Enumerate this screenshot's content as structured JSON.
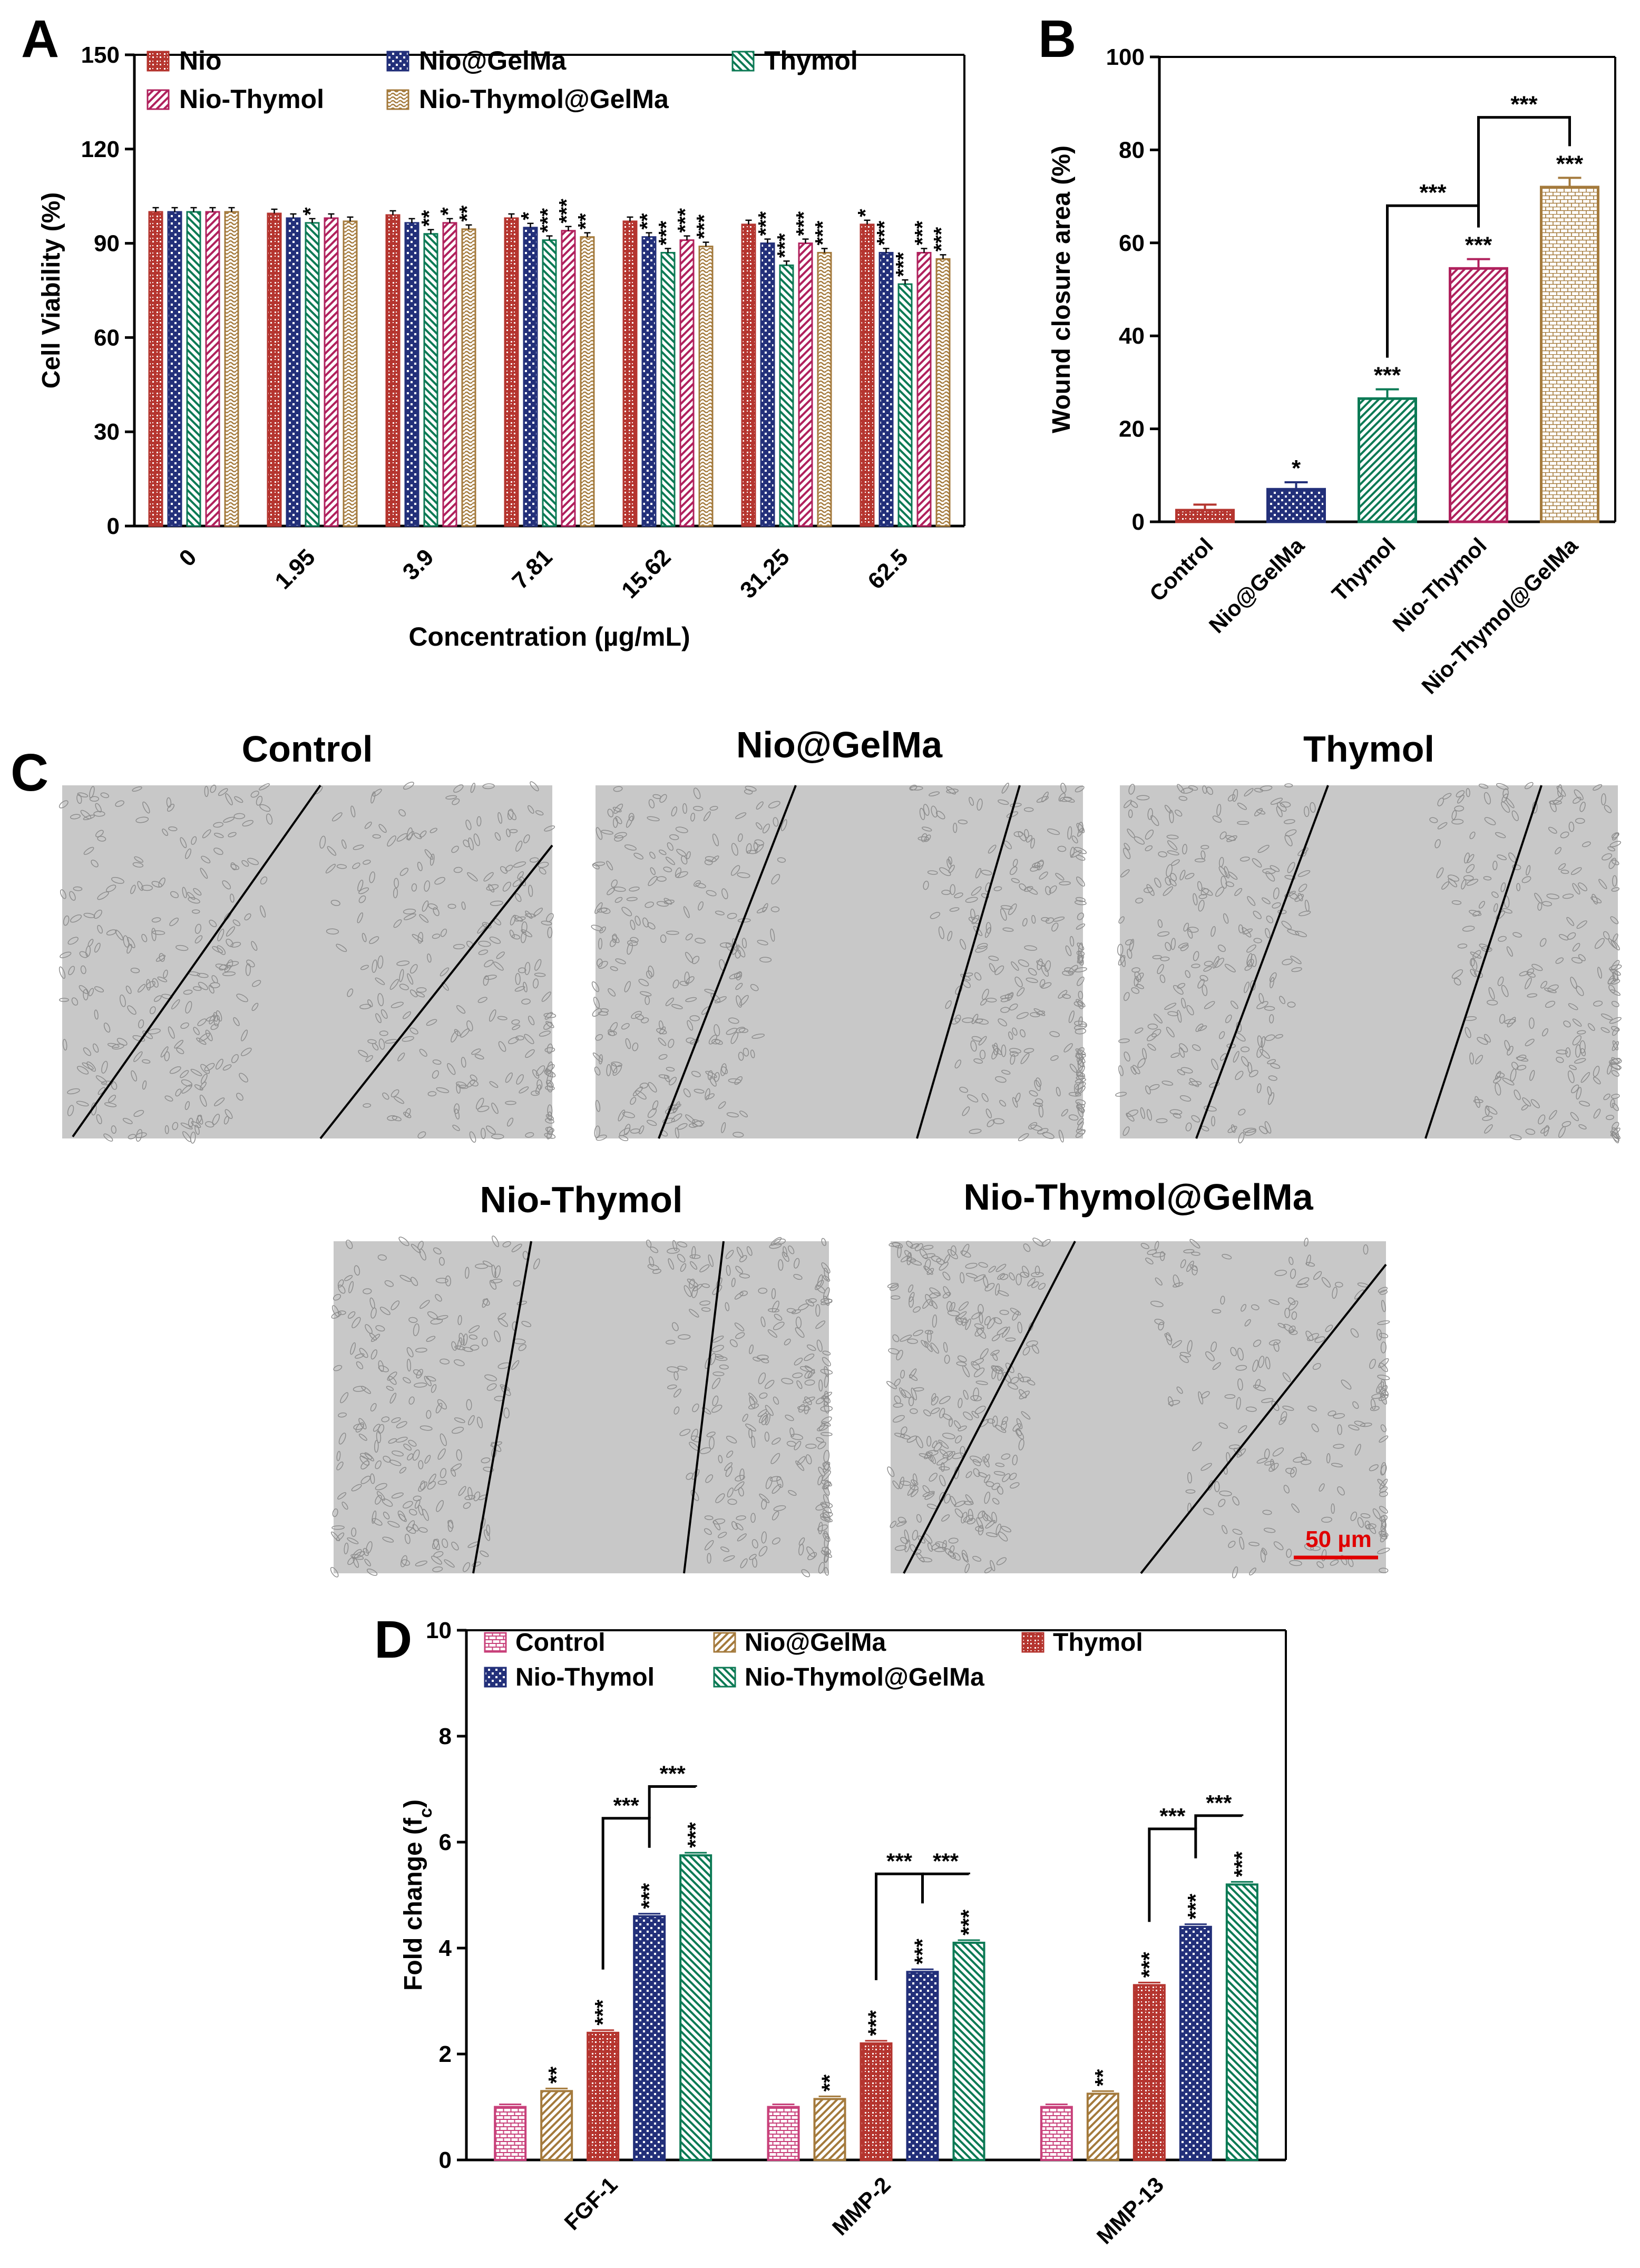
{
  "colors": {
    "nio": "#b5352f",
    "nio_gelma": "#23307a",
    "thymol": "#0c7a55",
    "nio_thymol": "#b0215d",
    "nio_thymol_gelma": "#a47a3c",
    "control_d": "#c8407a",
    "scale": "#e00000"
  },
  "chart_data": [
    {
      "panel": "A",
      "type": "bar",
      "ylabel": "Cell Viability (%)",
      "xlabel": "Concentration (µg/mL)",
      "ylim": [
        0,
        150
      ],
      "yticks": [
        0,
        30,
        60,
        90,
        120,
        150
      ],
      "categories": [
        "0",
        "1.95",
        "3.9",
        "7.81",
        "15.62",
        "31.25",
        "62.5"
      ],
      "legend": [
        "Nio",
        "Nio@GelMa",
        "Thymol",
        "Nio-Thymol",
        "Nio-Thymol@GelMa"
      ],
      "series": [
        {
          "name": "Nio",
          "values": [
            100,
            99.5,
            99,
            98,
            97,
            96,
            96
          ],
          "sig": [
            "",
            "",
            "",
            "",
            "",
            "",
            "*"
          ]
        },
        {
          "name": "Nio@GelMa",
          "values": [
            100,
            98,
            96.5,
            95,
            92,
            90,
            87
          ],
          "sig": [
            "",
            "",
            "",
            "*",
            "**",
            "***",
            "***"
          ]
        },
        {
          "name": "Thymol",
          "values": [
            100,
            96.5,
            93,
            91,
            87,
            83,
            77
          ],
          "sig": [
            "",
            "*",
            "**",
            "***",
            "***",
            "***",
            "***"
          ]
        },
        {
          "name": "Nio-Thymol",
          "values": [
            100,
            98,
            96.5,
            94,
            91,
            90,
            87
          ],
          "sig": [
            "",
            "",
            "*",
            "***",
            "***",
            "***",
            "***"
          ]
        },
        {
          "name": "Nio-Thymol@GelMa",
          "values": [
            100,
            97,
            94.5,
            92,
            89,
            87,
            85
          ],
          "sig": [
            "",
            "",
            "**",
            "**",
            "***",
            "***",
            "***"
          ]
        }
      ]
    },
    {
      "panel": "B",
      "type": "bar",
      "ylabel": "Wound closure area (%)",
      "xlabel": "",
      "ylim": [
        0,
        100
      ],
      "yticks": [
        0,
        20,
        40,
        60,
        80,
        100
      ],
      "categories": [
        "Control",
        "Nio@GelMa",
        "Thymol",
        "Nio-Thymol",
        "Nio-Thymol@GelMa"
      ],
      "values": [
        2.5,
        7,
        26.5,
        54.5,
        72
      ],
      "errors": [
        1.2,
        1.5,
        2,
        2,
        2
      ],
      "sig": [
        "",
        "*",
        "***",
        "***",
        "***"
      ],
      "brackets": [
        {
          "from": 2,
          "to": 3,
          "label": "***"
        },
        {
          "from": 3,
          "to": 4,
          "label": "***"
        }
      ]
    },
    {
      "panel": "D",
      "type": "bar",
      "ylabel": "Fold change (f",
      "ylabel_sub": "c",
      "ylabel_end": ")",
      "xlabel": "",
      "ylim": [
        0,
        10
      ],
      "yticks": [
        0,
        2,
        4,
        6,
        8,
        10
      ],
      "categories": [
        "FGF-1",
        "MMP-2",
        "MMP-13"
      ],
      "legend": [
        "Control",
        "Nio@GelMa",
        "Thymol",
        "Nio-Thymol",
        "Nio-Thymol@GelMa"
      ],
      "series": [
        {
          "name": "Control",
          "values": [
            1,
            1,
            1
          ],
          "sig": [
            "",
            "",
            ""
          ]
        },
        {
          "name": "Nio@GelMa",
          "values": [
            1.3,
            1.15,
            1.25
          ],
          "sig": [
            "**",
            "**",
            "**"
          ]
        },
        {
          "name": "Thymol",
          "values": [
            2.4,
            2.2,
            3.3
          ],
          "sig": [
            "***",
            "***",
            "***"
          ]
        },
        {
          "name": "Nio-Thymol",
          "values": [
            4.6,
            3.55,
            4.4
          ],
          "sig": [
            "***",
            "***",
            "***"
          ]
        },
        {
          "name": "Nio-Thymol@GelMa",
          "values": [
            5.75,
            4.1,
            5.2
          ],
          "sig": [
            "***",
            "***",
            "***"
          ]
        }
      ],
      "brackets_label": "***"
    }
  ],
  "panels": {
    "a": "A",
    "b": "B",
    "c": "C",
    "d": "D"
  },
  "micrographs": {
    "titles": [
      "Control",
      "Nio@GelMa",
      "Thymol",
      "Nio-Thymol",
      "Nio-Thymol@GelMa"
    ],
    "scale_bar": "50 µm"
  }
}
